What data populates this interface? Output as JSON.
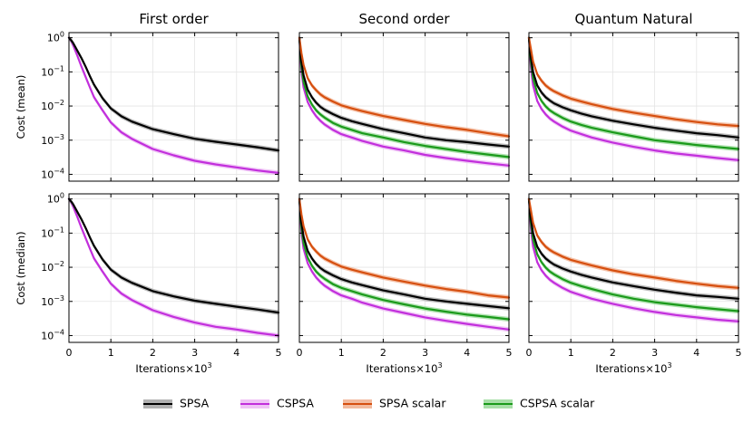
{
  "chart_data": {
    "type": "line",
    "column_titles": [
      "First order",
      "Second order",
      "Quantum Natural"
    ],
    "row_ylabels": [
      "Cost (mean)",
      "Cost (median)"
    ],
    "xlabel": "Iterations×10",
    "xlabel_exponent": "3",
    "x_ticks": [
      "0",
      "1",
      "2",
      "3",
      "4",
      "5"
    ],
    "y_ticks": [
      {
        "base": "10",
        "exp": "0"
      },
      {
        "base": "10",
        "exp": "−1"
      },
      {
        "base": "10",
        "exp": "−2"
      },
      {
        "base": "10",
        "exp": "−3"
      },
      {
        "base": "10",
        "exp": "−4"
      }
    ],
    "xlim": [
      0,
      5
    ],
    "ylim_log10": [
      -4.2,
      0.15
    ],
    "yscale": "log",
    "grid": true,
    "legend_position": "bottom-center",
    "legend": [
      {
        "name": "SPSA",
        "color": "#000000",
        "fill": "#aaaaaa"
      },
      {
        "name": "CSPSA",
        "color": "#c22fdc",
        "fill": "#eebcf5"
      },
      {
        "name": "SPSA scalar",
        "color": "#d64f0f",
        "fill": "#f1b394"
      },
      {
        "name": "CSPSA scalar",
        "color": "#1b9a1b",
        "fill": "#9fdc9f"
      }
    ],
    "x": [
      0,
      0.05,
      0.1,
      0.2,
      0.3,
      0.4,
      0.5,
      0.6,
      0.8,
      1.0,
      1.25,
      1.5,
      2.0,
      2.5,
      3.0,
      3.5,
      4.0,
      4.5,
      5.0
    ],
    "panels": [
      {
        "row": 0,
        "col": 0,
        "series": [
          {
            "name": "SPSA",
            "y": [
              1.0,
              0.85,
              0.7,
              0.42,
              0.25,
              0.14,
              0.075,
              0.042,
              0.017,
              0.0085,
              0.005,
              0.0035,
              0.0021,
              0.0015,
              0.0011,
              0.0009,
              0.00075,
              0.00062,
              0.0005
            ]
          },
          {
            "name": "CSPSA",
            "y": [
              1.0,
              0.8,
              0.6,
              0.3,
              0.14,
              0.07,
              0.035,
              0.018,
              0.0075,
              0.0033,
              0.0017,
              0.0011,
              0.00055,
              0.00036,
              0.00025,
              0.000195,
              0.00016,
              0.00013,
              0.00011
            ]
          }
        ]
      },
      {
        "row": 0,
        "col": 1,
        "series": [
          {
            "name": "SPSA",
            "y": [
              1.0,
              0.2,
              0.08,
              0.03,
              0.018,
              0.0125,
              0.0095,
              0.0078,
              0.0058,
              0.0045,
              0.0036,
              0.003,
              0.0021,
              0.0016,
              0.0012,
              0.001,
              0.00088,
              0.00075,
              0.00065
            ]
          },
          {
            "name": "CSPSA",
            "y": [
              1.0,
              0.1,
              0.035,
              0.013,
              0.0075,
              0.005,
              0.0037,
              0.0029,
              0.002,
              0.0015,
              0.0012,
              0.00095,
              0.00065,
              0.0005,
              0.00037,
              0.0003,
              0.00025,
              0.00021,
              0.00018
            ]
          },
          {
            "name": "SPSA scalar",
            "y": [
              1.0,
              0.35,
              0.16,
              0.065,
              0.04,
              0.029,
              0.022,
              0.018,
              0.0135,
              0.0105,
              0.0085,
              0.0071,
              0.0051,
              0.0039,
              0.003,
              0.0024,
              0.002,
              0.0016,
              0.0013
            ]
          },
          {
            "name": "CSPSA scalar",
            "y": [
              1.0,
              0.14,
              0.05,
              0.019,
              0.011,
              0.0075,
              0.0057,
              0.0046,
              0.0032,
              0.0025,
              0.002,
              0.0016,
              0.0012,
              0.00088,
              0.00068,
              0.00055,
              0.00045,
              0.00038,
              0.00032
            ]
          }
        ]
      },
      {
        "row": 0,
        "col": 2,
        "series": [
          {
            "name": "SPSA",
            "y": [
              1.0,
              0.25,
              0.1,
              0.04,
              0.025,
              0.018,
              0.0145,
              0.012,
              0.0092,
              0.0075,
              0.006,
              0.005,
              0.0037,
              0.0029,
              0.0023,
              0.0019,
              0.0016,
              0.0014,
              0.0012
            ]
          },
          {
            "name": "CSPSA",
            "y": [
              1.0,
              0.12,
              0.04,
              0.014,
              0.0082,
              0.0057,
              0.0043,
              0.0035,
              0.0025,
              0.0019,
              0.0015,
              0.0012,
              0.00085,
              0.00064,
              0.0005,
              0.00041,
              0.00035,
              0.0003,
              0.00026
            ]
          },
          {
            "name": "SPSA scalar",
            "y": [
              1.0,
              0.45,
              0.2,
              0.085,
              0.055,
              0.04,
              0.032,
              0.027,
              0.0205,
              0.0165,
              0.0135,
              0.0113,
              0.0082,
              0.0064,
              0.0051,
              0.0041,
              0.0034,
              0.0029,
              0.0026
            ]
          },
          {
            "name": "CSPSA scalar",
            "y": [
              1.0,
              0.18,
              0.065,
              0.024,
              0.014,
              0.0098,
              0.0075,
              0.0062,
              0.0045,
              0.0035,
              0.0028,
              0.0023,
              0.0017,
              0.0013,
              0.001,
              0.00085,
              0.00072,
              0.00063,
              0.00055
            ]
          }
        ]
      },
      {
        "row": 1,
        "col": 0,
        "series": [
          {
            "name": "SPSA",
            "y": [
              1.0,
              0.85,
              0.7,
              0.42,
              0.25,
              0.14,
              0.075,
              0.042,
              0.017,
              0.0085,
              0.005,
              0.0035,
              0.002,
              0.0014,
              0.00105,
              0.00085,
              0.0007,
              0.00058,
              0.00047
            ]
          },
          {
            "name": "CSPSA",
            "y": [
              1.0,
              0.8,
              0.6,
              0.3,
              0.14,
              0.07,
              0.035,
              0.018,
              0.0075,
              0.0033,
              0.0017,
              0.0011,
              0.00055,
              0.00035,
              0.00024,
              0.00018,
              0.00015,
              0.00012,
              0.0001
            ]
          }
        ]
      },
      {
        "row": 1,
        "col": 1,
        "series": [
          {
            "name": "SPSA",
            "y": [
              1.0,
              0.2,
              0.08,
              0.03,
              0.018,
              0.0125,
              0.0095,
              0.0078,
              0.0058,
              0.0045,
              0.0036,
              0.003,
              0.0021,
              0.0016,
              0.0012,
              0.001,
              0.00085,
              0.00073,
              0.00063
            ]
          },
          {
            "name": "CSPSA",
            "y": [
              1.0,
              0.1,
              0.035,
              0.013,
              0.0075,
              0.005,
              0.0037,
              0.0029,
              0.002,
              0.0015,
              0.0012,
              0.00092,
              0.00062,
              0.00046,
              0.00034,
              0.00027,
              0.00022,
              0.00018,
              0.00015
            ]
          },
          {
            "name": "SPSA scalar",
            "y": [
              1.0,
              0.35,
              0.16,
              0.065,
              0.04,
              0.029,
              0.022,
              0.018,
              0.0135,
              0.0105,
              0.0085,
              0.0071,
              0.005,
              0.0038,
              0.0029,
              0.0023,
              0.0019,
              0.0015,
              0.0013
            ]
          },
          {
            "name": "CSPSA scalar",
            "y": [
              1.0,
              0.14,
              0.05,
              0.019,
              0.011,
              0.0075,
              0.0057,
              0.0046,
              0.0032,
              0.0025,
              0.002,
              0.0016,
              0.0011,
              0.00082,
              0.00062,
              0.0005,
              0.00041,
              0.00035,
              0.0003
            ]
          }
        ]
      },
      {
        "row": 1,
        "col": 2,
        "series": [
          {
            "name": "SPSA",
            "y": [
              1.0,
              0.25,
              0.1,
              0.04,
              0.025,
              0.018,
              0.0145,
              0.012,
              0.0092,
              0.0075,
              0.006,
              0.005,
              0.0036,
              0.0028,
              0.0022,
              0.0018,
              0.0015,
              0.00135,
              0.0012
            ]
          },
          {
            "name": "CSPSA",
            "y": [
              1.0,
              0.12,
              0.04,
              0.014,
              0.0082,
              0.0057,
              0.0043,
              0.0035,
              0.0025,
              0.0019,
              0.0015,
              0.0012,
              0.00085,
              0.00063,
              0.00049,
              0.0004,
              0.00034,
              0.00029,
              0.00026
            ]
          },
          {
            "name": "SPSA scalar",
            "y": [
              1.0,
              0.45,
              0.2,
              0.085,
              0.055,
              0.04,
              0.032,
              0.027,
              0.0205,
              0.0165,
              0.0135,
              0.0113,
              0.0081,
              0.0062,
              0.005,
              0.004,
              0.0033,
              0.0028,
              0.0025
            ]
          },
          {
            "name": "CSPSA scalar",
            "y": [
              1.0,
              0.18,
              0.065,
              0.024,
              0.014,
              0.0098,
              0.0075,
              0.0062,
              0.0045,
              0.0035,
              0.0028,
              0.0023,
              0.0016,
              0.0012,
              0.00095,
              0.0008,
              0.00068,
              0.00059,
              0.00052
            ]
          }
        ]
      }
    ]
  }
}
